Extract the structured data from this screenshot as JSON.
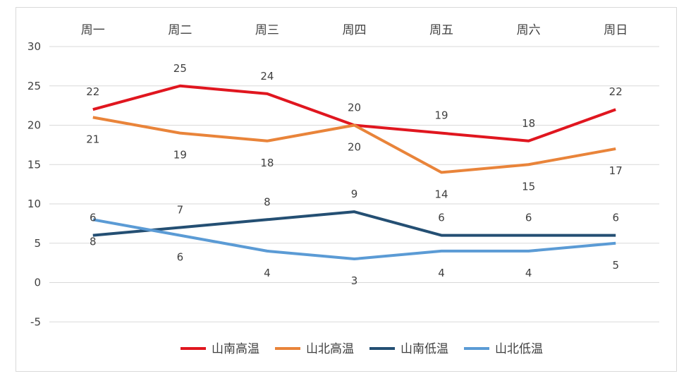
{
  "chart_data": {
    "type": "line",
    "title": "",
    "xlabel": "",
    "ylabel": "",
    "categories": [
      "周一",
      "周二",
      "周三",
      "周四",
      "周五",
      "周六",
      "周日"
    ],
    "ylim": [
      -5,
      30
    ],
    "yticks": [
      "30",
      "25",
      "20",
      "15",
      "10",
      "5",
      "0",
      "-5"
    ],
    "grid": true,
    "legend_position": "bottom",
    "series": [
      {
        "name": "山南高温",
        "color": "#e0161f",
        "values": [
          22,
          25,
          24,
          20,
          19,
          18,
          22
        ],
        "label_pos": "above"
      },
      {
        "name": "山北高温",
        "color": "#e9843a",
        "values": [
          21,
          19,
          18,
          20,
          14,
          15,
          17
        ],
        "label_pos": "below"
      },
      {
        "name": "山南低温",
        "color": "#244f73",
        "values": [
          6,
          7,
          8,
          9,
          6,
          6,
          6
        ],
        "label_pos": "above"
      },
      {
        "name": "山北低温",
        "color": "#5b9bd5",
        "values": [
          8,
          6,
          4,
          3,
          4,
          4,
          5
        ],
        "label_pos": "below"
      }
    ]
  }
}
